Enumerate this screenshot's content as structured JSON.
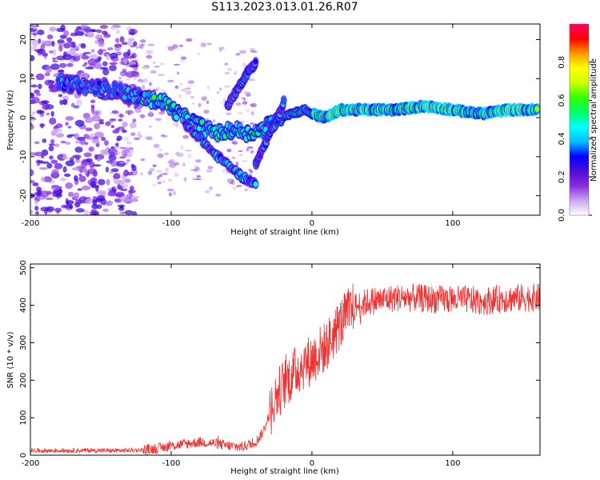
{
  "title": "S113.2023.013.01.26.R07",
  "chart_data": [
    {
      "type": "heatmap",
      "xlabel": "Height of straight line (km)",
      "ylabel": "Frequency (Hz)",
      "xlim": [
        -200,
        162
      ],
      "ylim": [
        -25,
        24
      ],
      "xticks": [
        -200,
        -100,
        0,
        100
      ],
      "yticks": [
        20,
        10,
        0,
        -10,
        -20
      ],
      "colorbar": {
        "label": "Normalized spectral amplitude",
        "range": [
          0,
          1
        ],
        "ticks": [
          0.0,
          0.2,
          0.4,
          0.6,
          0.8
        ],
        "colors": [
          "#ffffff",
          "#c9a6f0",
          "#8a2be2",
          "#4b0fd8",
          "#0000ff",
          "#00bfff",
          "#00ffff",
          "#00ff66",
          "#33ff00",
          "#ccff00",
          "#ffff00",
          "#ff9900",
          "#ff0000",
          "#ff0066"
        ]
      },
      "ridges": [
        {
          "x": [
            -180,
            -160,
            -140,
            -120,
            -105,
            -95,
            -85,
            -75,
            -65,
            -55,
            -45,
            -35,
            -25,
            -15,
            -5,
            0,
            10,
            20,
            40,
            60,
            80,
            100,
            120,
            140,
            160
          ],
          "y": [
            9,
            8,
            7,
            5,
            4,
            1,
            -1,
            -3,
            -4,
            -3,
            -4,
            -3,
            0,
            1,
            2,
            1,
            0,
            2,
            2,
            2,
            3,
            2,
            1,
            2,
            2
          ]
        },
        {
          "x": [
            -90,
            -80,
            -70,
            -60,
            -50,
            -40
          ],
          "y": [
            -2,
            -5,
            -9,
            -12,
            -15,
            -17
          ]
        },
        {
          "x": [
            -60,
            -55,
            -50,
            -45,
            -40
          ],
          "y": [
            3,
            6,
            9,
            12,
            14
          ]
        },
        {
          "x": [
            -40,
            -35,
            -30,
            -25,
            -20
          ],
          "y": [
            -12,
            -8,
            -4,
            -1,
            4
          ]
        }
      ]
    },
    {
      "type": "line",
      "xlabel": "Height of straight line (km)",
      "ylabel": "SNR (10 * v/v)",
      "xlim": [
        -200,
        162
      ],
      "ylim": [
        0,
        510
      ],
      "xticks": [
        -200,
        -100,
        0,
        100
      ],
      "yticks": [
        0,
        100,
        200,
        300,
        400,
        500
      ],
      "series": [
        {
          "color": "#ee3333",
          "x": [
            -200,
            -180,
            -160,
            -140,
            -120,
            -110,
            -100,
            -90,
            -80,
            -70,
            -60,
            -50,
            -40,
            -35,
            -30,
            -25,
            -20,
            -15,
            -10,
            -5,
            0,
            5,
            10,
            15,
            20,
            25,
            30,
            40,
            50,
            60,
            70,
            80,
            90,
            100,
            110,
            120,
            130,
            140,
            150,
            160
          ],
          "y": [
            12,
            12,
            13,
            12,
            14,
            18,
            25,
            30,
            35,
            32,
            25,
            22,
            35,
            60,
            110,
            160,
            190,
            210,
            230,
            245,
            255,
            275,
            290,
            320,
            350,
            375,
            395,
            410,
            415,
            420,
            420,
            418,
            415,
            415,
            415,
            410,
            415,
            418,
            420,
            420
          ]
        }
      ]
    }
  ]
}
